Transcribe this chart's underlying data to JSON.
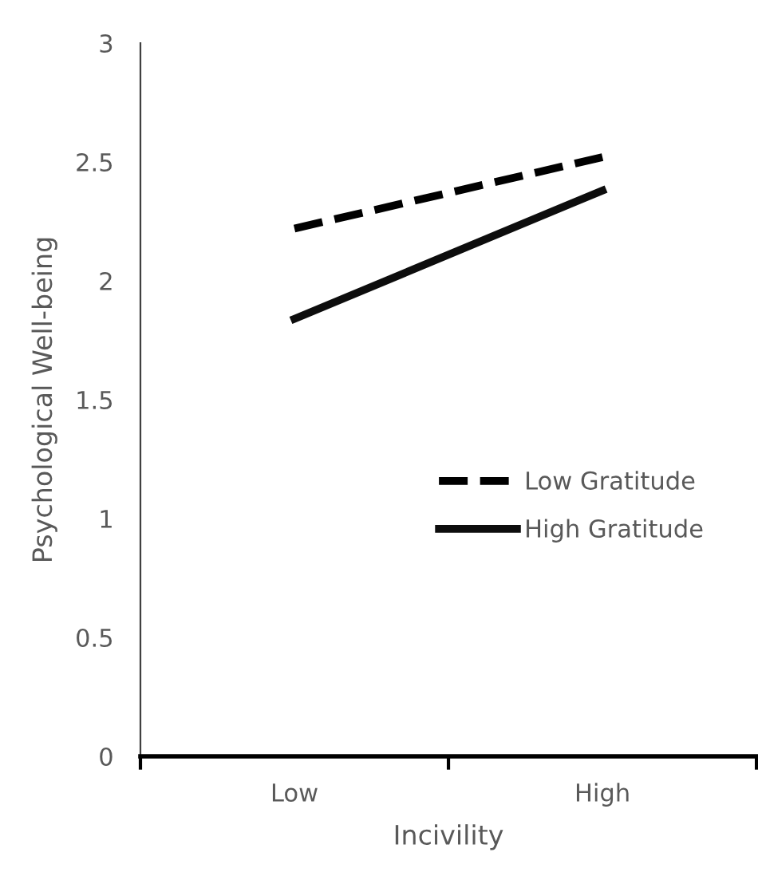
{
  "chart_data": {
    "type": "line",
    "xlabel": "Incivility",
    "ylabel": "Psychological Well-being",
    "categories": [
      "Low",
      "High"
    ],
    "series": [
      {
        "name": "Low Gratitude",
        "color": "#000000",
        "values": [
          2.22,
          2.52
        ],
        "line_style": "dashed"
      },
      {
        "name": "High Gratitude",
        "color": "#0d0d0d",
        "values": [
          1.84,
          2.38
        ],
        "line_style": "solid"
      }
    ],
    "ylim": [
      0,
      3
    ],
    "yticks": [
      0,
      0.5,
      1,
      1.5,
      2,
      2.5,
      3
    ],
    "grid": false,
    "legend": "right",
    "marker": "none"
  }
}
